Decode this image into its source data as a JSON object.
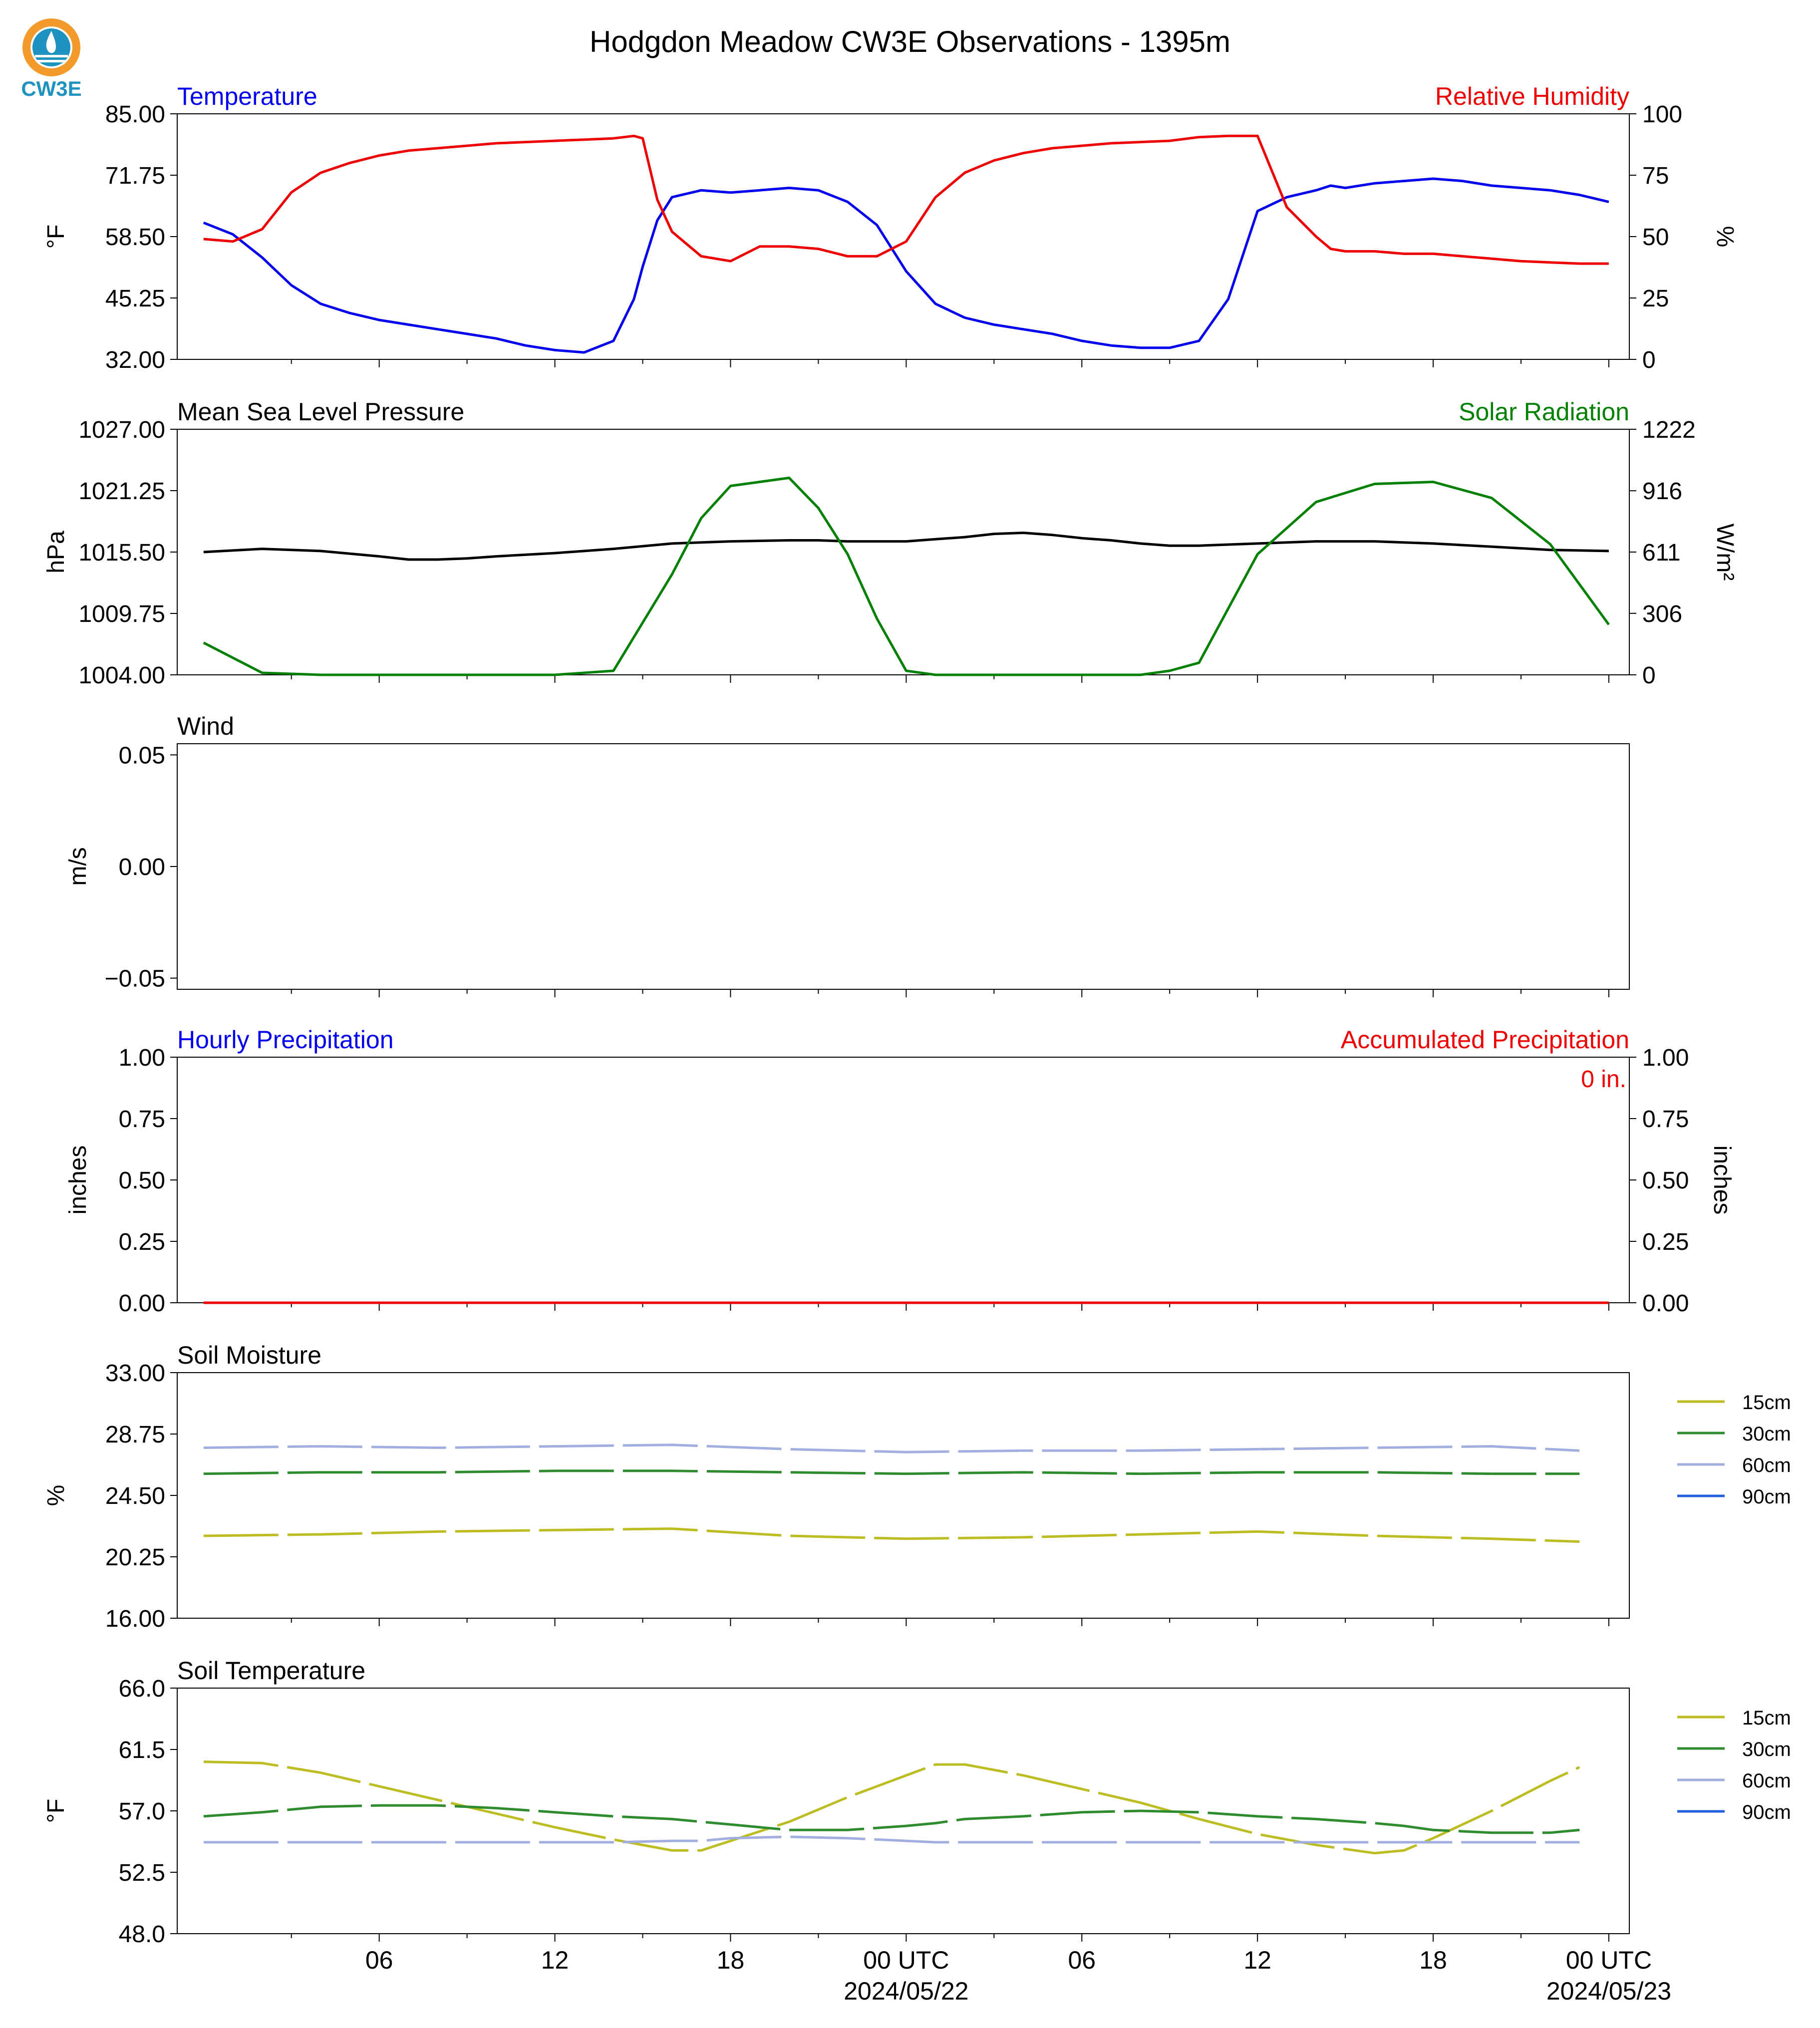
{
  "figure": {
    "title": "Hodgdon Meadow CW3E Observations - 1395m",
    "logo_text": "CW3E"
  },
  "colors": {
    "temperature": "#0000ee",
    "humidity": "#ee0000",
    "pressure": "#000000",
    "solar": "#008000",
    "accum_precip": "#ee0000",
    "soil_15cm": "#bcbd22",
    "soil_30cm": "#2e8b2e",
    "soil_60cm": "#a3aee0",
    "soil_90cm": "#1f5fe0",
    "logo_orange": "#f39a2a",
    "logo_teal": "#1f93c0"
  },
  "x_axis": {
    "tick_labels": [
      "06",
      "12",
      "18",
      "00 UTC",
      "06",
      "12",
      "18",
      "00 UTC"
    ],
    "date_labels": [
      "2024/05/22",
      "2024/05/23"
    ]
  },
  "chart_data": [
    {
      "type": "line",
      "panel": "temperature-humidity",
      "left_label": "Temperature",
      "right_label": "Relative Humidity",
      "ylabel": "°F",
      "ylabel_right": "%",
      "yticks": [
        "32.00",
        "45.25",
        "58.50",
        "71.75",
        "85.00"
      ],
      "yticks_right": [
        "0",
        "25",
        "50",
        "75",
        "100"
      ],
      "ylim": [
        32,
        85
      ],
      "ylim_right": [
        0,
        100
      ],
      "x_hours_since_start": [
        0,
        1,
        2,
        3,
        4,
        5,
        6,
        7,
        8,
        9,
        10,
        11,
        12,
        13,
        14,
        14.7,
        15,
        15.5,
        16,
        17,
        18,
        19,
        20,
        21,
        22,
        23,
        24,
        25,
        26,
        27,
        28,
        29,
        30,
        31,
        32,
        33,
        34,
        35,
        36,
        37,
        38,
        38.5,
        39,
        40,
        41,
        42,
        43,
        44,
        45,
        46,
        47,
        48
      ],
      "series": [
        {
          "name": "Temperature",
          "axis": "left",
          "values": [
            61.5,
            59,
            54,
            48,
            44,
            42,
            40.5,
            39.5,
            38.5,
            37.5,
            36.5,
            35,
            34,
            33.5,
            36,
            45,
            52,
            62,
            67,
            68.5,
            68,
            68.5,
            69,
            68.5,
            66,
            61,
            51,
            44,
            41,
            39.5,
            38.5,
            37.5,
            36,
            35,
            34.5,
            34.5,
            36,
            45,
            64,
            67,
            68.5,
            69.5,
            69,
            70,
            70.5,
            71,
            70.5,
            69.5,
            69,
            68.5,
            67.5,
            66
          ]
        },
        {
          "name": "Relative Humidity",
          "axis": "right",
          "values": [
            49,
            48,
            53,
            68,
            76,
            80,
            83,
            85,
            86,
            87,
            88,
            88.5,
            89,
            89.5,
            90,
            91,
            90,
            65,
            52,
            42,
            40,
            46,
            46,
            45,
            42,
            42,
            48,
            66,
            76,
            81,
            84,
            86,
            87,
            88,
            88.5,
            89,
            90.5,
            91,
            91,
            62,
            50,
            45,
            44,
            44,
            43,
            43,
            42,
            41,
            40,
            39.5,
            39,
            39
          ]
        }
      ]
    },
    {
      "type": "line",
      "panel": "pressure-solar",
      "left_label": "Mean Sea Level Pressure",
      "right_label": "Solar Radiation",
      "ylabel": "hPa",
      "ylabel_right": "W/m²",
      "yticks": [
        "1004.00",
        "1009.75",
        "1015.50",
        "1021.25",
        "1027.00"
      ],
      "yticks_right": [
        "0",
        "306",
        "611",
        "916",
        "1222"
      ],
      "ylim": [
        1004,
        1027
      ],
      "ylim_right": [
        0,
        1222
      ],
      "x_hours_since_start": [
        0,
        2,
        4,
        6,
        7,
        8,
        9,
        10,
        12,
        14,
        16,
        17,
        18,
        20,
        21,
        22,
        23,
        24,
        25,
        26,
        27,
        28,
        29,
        30,
        31,
        32,
        33,
        34,
        36,
        38,
        40,
        42,
        44,
        46,
        48
      ],
      "series": [
        {
          "name": "Mean Sea Level Pressure",
          "axis": "left",
          "values": [
            1015.5,
            1015.8,
            1015.6,
            1015.1,
            1014.8,
            1014.8,
            1014.9,
            1015.1,
            1015.4,
            1015.8,
            1016.3,
            1016.4,
            1016.5,
            1016.6,
            1016.6,
            1016.5,
            1016.5,
            1016.5,
            1016.7,
            1016.9,
            1017.2,
            1017.3,
            1017.1,
            1016.8,
            1016.6,
            1016.3,
            1016.1,
            1016.1,
            1016.3,
            1016.5,
            1016.5,
            1016.3,
            1016,
            1015.7,
            1015.6
          ]
        },
        {
          "name": "Solar Radiation",
          "axis": "right",
          "values": [
            160,
            10,
            0,
            0,
            0,
            0,
            0,
            0,
            0,
            20,
            500,
            780,
            940,
            980,
            830,
            600,
            280,
            20,
            0,
            0,
            0,
            0,
            0,
            0,
            0,
            0,
            20,
            60,
            600,
            860,
            950,
            960,
            880,
            650,
            250
          ]
        }
      ]
    },
    {
      "type": "line",
      "panel": "wind",
      "left_label": "Wind",
      "ylabel": "m/s",
      "yticks": [
        "−0.05",
        "0.00",
        "0.05"
      ],
      "ylim": [
        -0.055,
        0.055
      ],
      "series": []
    },
    {
      "type": "line",
      "panel": "precipitation",
      "left_label": "Hourly Precipitation",
      "right_label": "Accumulated Precipitation",
      "ylabel": "inches",
      "ylabel_right": "inches",
      "yticks": [
        "0.00",
        "0.25",
        "0.50",
        "0.75",
        "1.00"
      ],
      "yticks_right": [
        "0.00",
        "0.25",
        "0.50",
        "0.75",
        "1.00"
      ],
      "ylim": [
        0,
        1
      ],
      "annotation": "0 in.",
      "x_hours_since_start": [
        0,
        48
      ],
      "series": [
        {
          "name": "Hourly Precipitation",
          "axis": "left",
          "values": [
            0,
            0
          ]
        },
        {
          "name": "Accumulated Precipitation",
          "axis": "right",
          "values": [
            0,
            0
          ]
        }
      ]
    },
    {
      "type": "line",
      "panel": "soil-moisture",
      "left_label": "Soil Moisture",
      "ylabel": "%",
      "yticks": [
        "16.00",
        "20.25",
        "24.50",
        "28.75",
        "33.00"
      ],
      "ylim": [
        16,
        33
      ],
      "legend": [
        "15cm",
        "30cm",
        "60cm",
        "90cm"
      ],
      "x_hours_since_start": [
        0,
        4,
        8,
        12,
        16,
        20,
        24,
        28,
        32,
        36,
        40,
        44,
        47
      ],
      "series": [
        {
          "name": "15cm",
          "values": [
            21.7,
            21.8,
            22,
            22.1,
            22.2,
            21.7,
            21.5,
            21.6,
            21.8,
            22,
            21.7,
            21.5,
            21.3
          ]
        },
        {
          "name": "30cm",
          "values": [
            26,
            26.1,
            26.1,
            26.2,
            26.2,
            26.1,
            26,
            26.1,
            26,
            26.1,
            26.1,
            26,
            26
          ]
        },
        {
          "name": "60cm",
          "values": [
            27.8,
            27.9,
            27.8,
            27.9,
            28,
            27.7,
            27.5,
            27.6,
            27.6,
            27.7,
            27.8,
            27.9,
            27.6
          ]
        }
      ]
    },
    {
      "type": "line",
      "panel": "soil-temperature",
      "left_label": "Soil Temperature",
      "ylabel": "°F",
      "yticks": [
        "48.0",
        "52.5",
        "57.0",
        "61.5",
        "66.0"
      ],
      "ylim": [
        48,
        66
      ],
      "legend": [
        "15cm",
        "30cm",
        "60cm",
        "90cm"
      ],
      "x_hours_since_start": [
        0,
        2,
        4,
        6,
        8,
        10,
        12,
        14,
        16,
        17,
        18,
        20,
        22,
        24,
        25,
        26,
        28,
        30,
        32,
        34,
        36,
        38,
        40,
        41,
        42,
        44,
        46,
        47
      ],
      "series": [
        {
          "name": "15cm",
          "values": [
            60.6,
            60.5,
            59.8,
            58.8,
            57.8,
            56.8,
            55.8,
            54.9,
            54.1,
            54.1,
            54.8,
            56.2,
            58,
            59.6,
            60.4,
            60.4,
            59.6,
            58.6,
            57.6,
            56.4,
            55.3,
            54.5,
            53.9,
            54.1,
            55,
            57,
            59.2,
            60.2
          ]
        },
        {
          "name": "30cm",
          "values": [
            56.6,
            56.9,
            57.3,
            57.4,
            57.4,
            57.2,
            56.9,
            56.6,
            56.4,
            56.2,
            56,
            55.6,
            55.6,
            55.9,
            56.1,
            56.4,
            56.6,
            56.9,
            57,
            56.9,
            56.6,
            56.4,
            56.1,
            55.9,
            55.6,
            55.4,
            55.4,
            55.6
          ]
        },
        {
          "name": "60cm",
          "values": [
            54.7,
            54.7,
            54.7,
            54.7,
            54.7,
            54.7,
            54.7,
            54.7,
            54.8,
            54.8,
            55,
            55.1,
            55,
            54.8,
            54.7,
            54.7,
            54.7,
            54.7,
            54.7,
            54.7,
            54.7,
            54.7,
            54.7,
            54.7,
            54.7,
            54.7,
            54.7,
            54.7
          ]
        }
      ]
    }
  ]
}
